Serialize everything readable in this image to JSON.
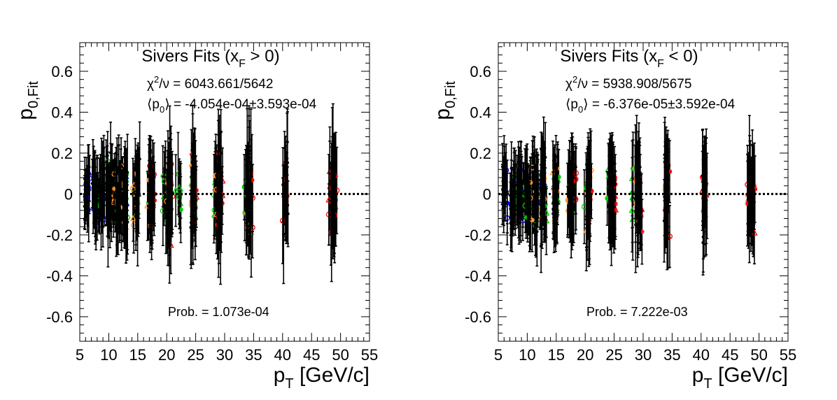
{
  "chart_data": [
    {
      "type": "scatter",
      "title_main": "Sivers Fits (x",
      "title_sub": "F",
      "title_tail": " > 0)",
      "stat_chi_pre": "χ",
      "stat_chi_sup": "2",
      "stat_chi_tail": "/ν = 6043.661/5642",
      "stat_mean_pre": "⟨p",
      "stat_mean_sub": "0",
      "stat_mean_tail": "⟩ = -4.054e-04±3.593e-04",
      "prob": "Prob. = 1.073e-04",
      "ylabel_main": "p",
      "ylabel_sub": "0,Fit",
      "xlabel_main": "p",
      "xlabel_sub": "T",
      "xlabel_tail": " [GeV/c]",
      "xlim": [
        5,
        55
      ],
      "ylim": [
        -0.72,
        0.74
      ],
      "xticks": [
        5,
        10,
        15,
        20,
        25,
        30,
        35,
        40,
        45,
        50,
        55
      ],
      "xtick_labels": [
        "5",
        "10",
        "15",
        "20",
        "25",
        "30",
        "35",
        "40",
        "45",
        "50",
        "55"
      ],
      "yticks": [
        -0.6,
        -0.4,
        -0.2,
        0,
        0.2,
        0.4,
        0.6
      ],
      "ytick_labels": [
        "-0.6",
        "-0.4",
        "-0.2",
        "0",
        "0.2",
        "0.4",
        "0.6"
      ],
      "reference_line_y": 0,
      "series": [
        {
          "color": "#0000ff",
          "x": [
            6.4,
            7.7,
            9.0,
            10.2,
            11.4,
            12.6
          ],
          "spread": [
            0.1,
            0.1,
            0.1,
            0.09,
            0.09,
            0.09
          ],
          "err": [
            0.13,
            0.13,
            0.13,
            0.14,
            0.15,
            0.16
          ]
        },
        {
          "color": "#00cc00",
          "x": [
            8.0,
            9.6,
            11.0,
            12.8,
            14.8,
            17.3,
            19.6,
            22.0,
            24.6,
            28.6,
            33.8
          ],
          "spread": [
            0.09,
            0.09,
            0.09,
            0.09,
            0.1,
            0.1,
            0.1,
            0.11,
            0.11,
            0.12,
            0.12
          ],
          "err": [
            0.13,
            0.13,
            0.14,
            0.15,
            0.15,
            0.16,
            0.17,
            0.17,
            0.18,
            0.18,
            0.19
          ]
        },
        {
          "color": "#ff9933",
          "x": [
            10.6,
            12.4,
            14.6,
            17.0,
            20.4,
            24.4,
            28.8,
            34.2
          ],
          "spread": [
            0.09,
            0.1,
            0.1,
            0.1,
            0.11,
            0.11,
            0.12,
            0.12
          ],
          "err": [
            0.14,
            0.15,
            0.15,
            0.16,
            0.17,
            0.18,
            0.19,
            0.19
          ]
        },
        {
          "color": "#ff0000",
          "x": [
            17.5,
            20.6,
            24.8,
            29.2,
            34.4,
            40.4,
            48.2,
            49.0
          ],
          "spread": [
            0.09,
            0.1,
            0.1,
            0.11,
            0.11,
            0.11,
            0.12,
            0.12
          ],
          "err": [
            0.16,
            0.17,
            0.18,
            0.19,
            0.19,
            0.2,
            0.2,
            0.2
          ]
        },
        {
          "color": "#000000",
          "x": [
            6.2,
            7.6,
            8.8,
            10.0,
            11.6,
            12.9,
            14.9,
            17.4,
            20.5,
            24.6,
            29.0,
            34.1,
            40.5,
            48.6
          ],
          "spread": [
            0.11,
            0.11,
            0.11,
            0.11,
            0.11,
            0.12,
            0.12,
            0.12,
            0.13,
            0.13,
            0.14,
            0.14,
            0.14,
            0.14
          ],
          "err": [
            0.13,
            0.13,
            0.14,
            0.14,
            0.15,
            0.16,
            0.16,
            0.17,
            0.18,
            0.19,
            0.2,
            0.2,
            0.21,
            0.21
          ]
        }
      ]
    },
    {
      "type": "scatter",
      "title_main": "Sivers Fits (x",
      "title_sub": "F",
      "title_tail": " < 0)",
      "stat_chi_pre": "χ",
      "stat_chi_sup": "2",
      "stat_chi_tail": "/ν = 5938.908/5675",
      "stat_mean_pre": "⟨p",
      "stat_mean_sub": "0",
      "stat_mean_tail": "⟩ = -6.376e-05±3.592e-04",
      "prob": "Prob. = 7.222e-03",
      "ylabel_main": "p",
      "ylabel_sub": "0,Fit",
      "xlabel_main": "p",
      "xlabel_sub": "T",
      "xlabel_tail": " [GeV/c]",
      "xlim": [
        5,
        55
      ],
      "ylim": [
        -0.72,
        0.74
      ],
      "xticks": [
        5,
        10,
        15,
        20,
        25,
        30,
        35,
        40,
        45,
        50,
        55
      ],
      "xtick_labels": [
        "5",
        "10",
        "15",
        "20",
        "25",
        "30",
        "35",
        "40",
        "45",
        "50",
        "55"
      ],
      "yticks": [
        -0.6,
        -0.4,
        -0.2,
        0,
        0.2,
        0.4,
        0.6
      ],
      "ytick_labels": [
        "-0.6",
        "-0.4",
        "-0.2",
        "0",
        "0.2",
        "0.4",
        "0.6"
      ],
      "reference_line_y": 0,
      "series": [
        {
          "color": "#0000ff",
          "x": [
            6.3,
            7.6,
            8.9,
            10.2,
            11.4,
            12.6
          ],
          "spread": [
            0.1,
            0.1,
            0.1,
            0.09,
            0.09,
            0.09
          ],
          "err": [
            0.13,
            0.13,
            0.13,
            0.14,
            0.15,
            0.16
          ]
        },
        {
          "color": "#00cc00",
          "x": [
            8.2,
            9.8,
            11.2,
            13.0,
            15.0,
            17.6,
            20.2,
            24.2,
            28.4
          ],
          "spread": [
            0.09,
            0.09,
            0.09,
            0.09,
            0.1,
            0.1,
            0.1,
            0.11,
            0.11
          ],
          "err": [
            0.13,
            0.13,
            0.14,
            0.15,
            0.15,
            0.16,
            0.17,
            0.18,
            0.18
          ]
        },
        {
          "color": "#ff9933",
          "x": [
            10.8,
            12.6,
            14.8,
            17.4,
            20.6,
            24.6,
            29.0,
            34.0
          ],
          "spread": [
            0.09,
            0.1,
            0.1,
            0.1,
            0.11,
            0.11,
            0.12,
            0.12
          ],
          "err": [
            0.14,
            0.15,
            0.15,
            0.16,
            0.17,
            0.18,
            0.19,
            0.19
          ]
        },
        {
          "color": "#ff0000",
          "x": [
            18.0,
            20.8,
            24.8,
            29.4,
            34.2,
            40.6,
            48.4,
            49.2
          ],
          "spread": [
            0.09,
            0.1,
            0.1,
            0.11,
            0.11,
            0.11,
            0.12,
            0.12
          ],
          "err": [
            0.16,
            0.17,
            0.18,
            0.19,
            0.19,
            0.2,
            0.2,
            0.2
          ]
        },
        {
          "color": "#000000",
          "x": [
            6.1,
            7.5,
            8.7,
            10.0,
            11.5,
            12.8,
            14.9,
            17.5,
            20.5,
            24.5,
            29.1,
            34.0,
            40.5,
            48.6
          ],
          "spread": [
            0.11,
            0.11,
            0.11,
            0.11,
            0.11,
            0.12,
            0.12,
            0.12,
            0.13,
            0.13,
            0.14,
            0.14,
            0.14,
            0.14
          ],
          "err": [
            0.13,
            0.13,
            0.14,
            0.14,
            0.15,
            0.16,
            0.16,
            0.17,
            0.18,
            0.19,
            0.2,
            0.2,
            0.21,
            0.21
          ]
        }
      ]
    }
  ]
}
